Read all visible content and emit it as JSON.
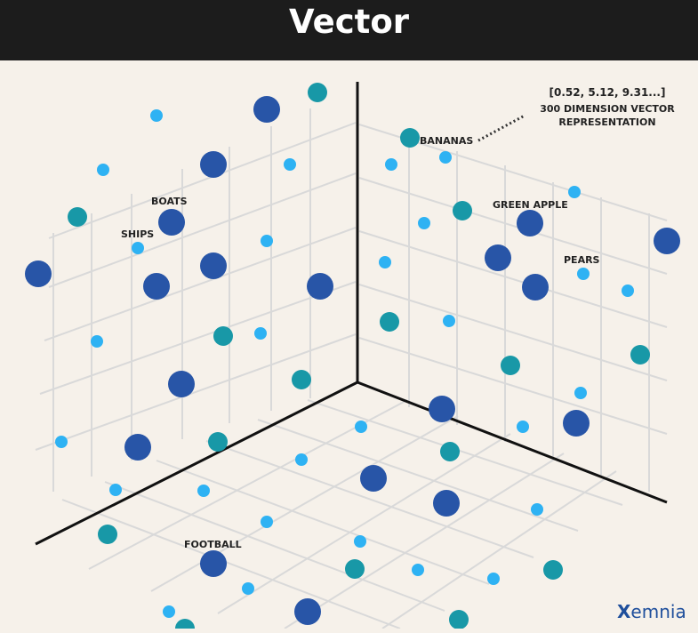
{
  "header": {
    "title": "Vector"
  },
  "labels": {
    "vector": "[0.52, 5.12, 9.31...]",
    "dimension_line1": "300 DIMENSION VECTOR",
    "dimension_line2": "REPRESENTATION",
    "bananas": "BANANAS",
    "green_apple": "GREEN APPLE",
    "pears": "PEARS",
    "boats": "BOATS",
    "ships": "SHIPS",
    "football": "FOOTBALL"
  },
  "logo": {
    "x_letter": "X",
    "rest": "emnia"
  },
  "colors": {
    "background": "#f6f1ea",
    "header": "#1c1c1c",
    "dark_blue": "#2855a7",
    "teal": "#1898a7",
    "light_blue": "#2eb2f3",
    "grid": "#d9d9d9",
    "axis": "#111111"
  }
}
